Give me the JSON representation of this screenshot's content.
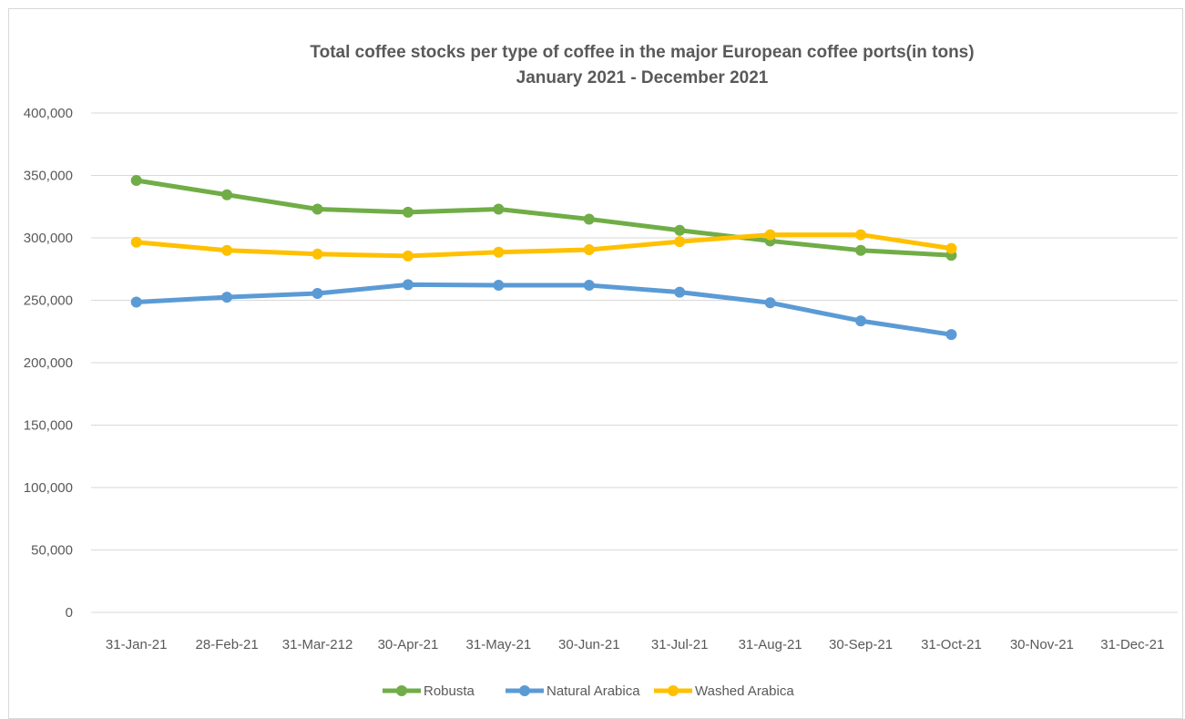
{
  "chart_data": {
    "type": "line",
    "title": "Total coffee stocks per type of coffee in the major European coffee ports(in tons)",
    "subtitle": "January 2021 - December 2021",
    "xlabel": "",
    "ylabel": "",
    "categories": [
      "31-Jan-21",
      "28-Feb-21",
      "31-Mar-212",
      "30-Apr-21",
      "31-May-21",
      "30-Jun-21",
      "31-Jul-21",
      "31-Aug-21",
      "30-Sep-21",
      "31-Oct-21",
      "30-Nov-21",
      "31-Dec-21"
    ],
    "ylim": [
      0,
      400000
    ],
    "yticks": [
      0,
      50000,
      100000,
      150000,
      200000,
      250000,
      300000,
      350000,
      400000
    ],
    "ytick_labels": [
      "0",
      "50,000",
      "100,000",
      "150,000",
      "200,000",
      "250,000",
      "300,000",
      "350,000",
      "400,000"
    ],
    "grid": "horizontal",
    "legend": "bottom",
    "series": [
      {
        "name": "Robusta",
        "color": "#70ad47",
        "values": [
          346000,
          334500,
          323000,
          320500,
          323000,
          315000,
          306000,
          297500,
          290000,
          286000,
          null,
          null
        ]
      },
      {
        "name": "Natural Arabica",
        "color": "#5b9bd5",
        "values": [
          248500,
          252500,
          255500,
          262500,
          262000,
          262000,
          256500,
          248000,
          233500,
          222500,
          null,
          null
        ]
      },
      {
        "name": "Washed Arabica",
        "color": "#ffc000",
        "values": [
          296500,
          290000,
          287000,
          285500,
          288500,
          290500,
          297000,
          302500,
          302500,
          291500,
          null,
          null
        ]
      }
    ]
  }
}
